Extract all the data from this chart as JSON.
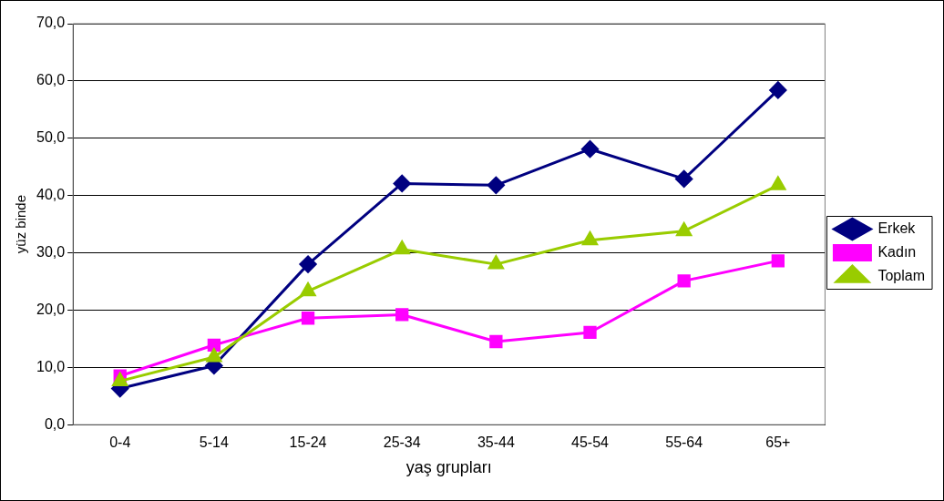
{
  "chart_data": {
    "type": "line",
    "xlabel": "yaş grupları",
    "ylabel": "yüz binde",
    "categories": [
      "0-4",
      "5-14",
      "15-24",
      "25-34",
      "35-44",
      "45-54",
      "55-64",
      "65+"
    ],
    "series": [
      {
        "name": "Erkek",
        "color": "#000080",
        "marker": "diamond",
        "values": [
          6.3,
          10.3,
          28.0,
          42.1,
          41.8,
          48.1,
          42.9,
          58.4
        ]
      },
      {
        "name": "Kadın",
        "color": "#ff00ff",
        "marker": "square",
        "values": [
          8.5,
          13.9,
          18.6,
          19.2,
          14.5,
          16.1,
          25.1,
          28.6
        ]
      },
      {
        "name": "Toplam",
        "color": "#99cc00",
        "marker": "triangle",
        "values": [
          7.6,
          11.8,
          23.3,
          30.6,
          28.0,
          32.2,
          33.8,
          41.8
        ]
      }
    ],
    "ylim": [
      0,
      70
    ],
    "yticks": [
      {
        "value": 0,
        "label": "0,0"
      },
      {
        "value": 10,
        "label": "10,0"
      },
      {
        "value": 20,
        "label": "20,0"
      },
      {
        "value": 30,
        "label": "30,0"
      },
      {
        "value": 40,
        "label": "40,0"
      },
      {
        "value": 50,
        "label": "50,0"
      },
      {
        "value": 60,
        "label": "60,0"
      },
      {
        "value": 70,
        "label": "70,0"
      }
    ],
    "grid": "y",
    "legend": "right",
    "line_style": "solid"
  }
}
